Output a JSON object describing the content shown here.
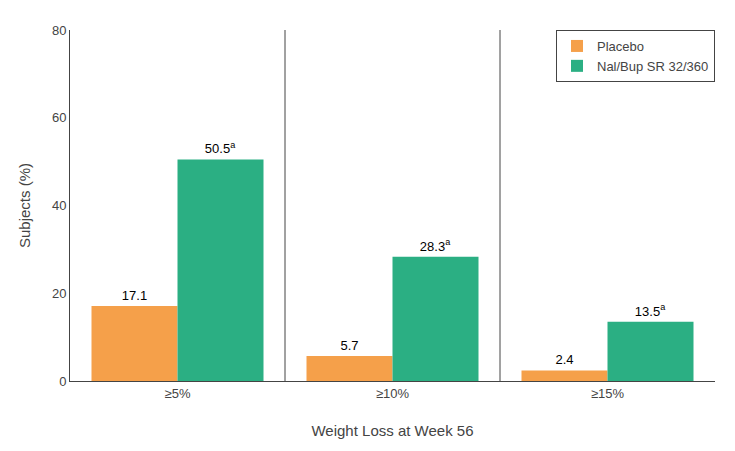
{
  "chart_data": {
    "type": "bar",
    "categories": [
      "≥5%",
      "≥10%",
      "≥15%"
    ],
    "series": [
      {
        "name": "Placebo",
        "color": "#F5A04A",
        "values": [
          17.1,
          5.7,
          2.4
        ]
      },
      {
        "name": "Nal/Bup SR 32/360",
        "color": "#2BAF83",
        "values": [
          50.5,
          28.3,
          13.5
        ],
        "annotation": "a"
      }
    ],
    "xlabel": "Weight Loss at Week 56",
    "ylabel": "Subjects (%)",
    "ylim": [
      0,
      80
    ],
    "yticks": [
      0,
      20,
      40,
      60,
      80
    ],
    "grid": false,
    "legend": "upper right",
    "data_labels": true
  }
}
